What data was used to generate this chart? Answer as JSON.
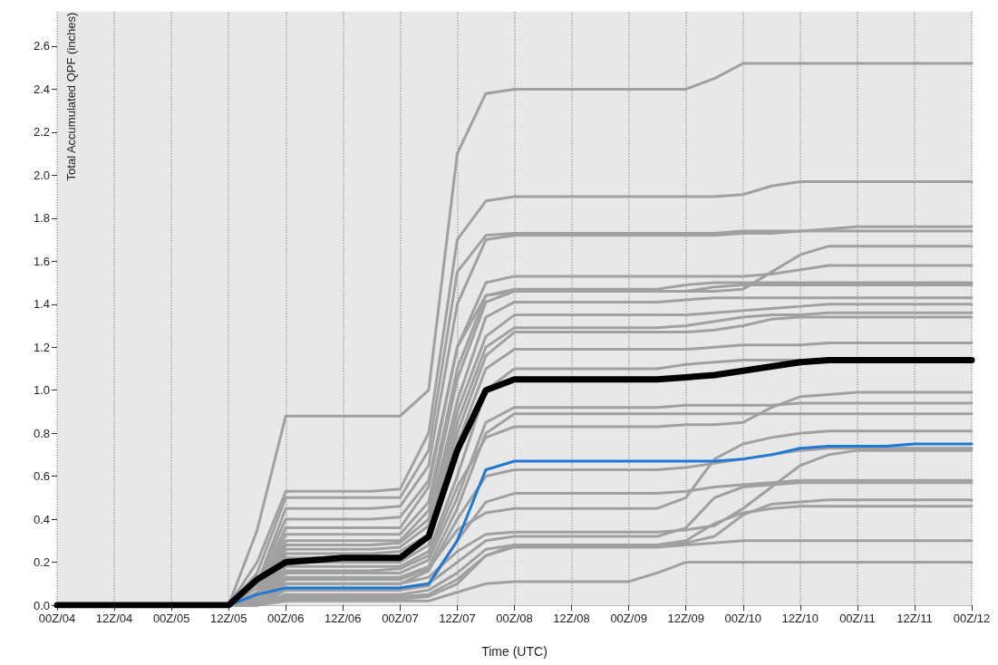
{
  "chart_data": {
    "type": "line",
    "xlabel": "Time (UTC)",
    "ylabel": "Total Accumulated QPF (inches)",
    "categories": [
      "00Z/04",
      null,
      "12Z/04",
      null,
      "00Z/05",
      null,
      "12Z/05",
      null,
      "00Z/06",
      null,
      "12Z/06",
      null,
      "00Z/07",
      null,
      "12Z/07",
      null,
      "00Z/08",
      null,
      "12Z/08",
      null,
      "00Z/09",
      null,
      "12Z/09",
      null,
      "00Z/10",
      null,
      "12Z/10",
      null,
      "00Z/11",
      null,
      "12Z/11",
      null,
      "00Z/12"
    ],
    "ylim": [
      0,
      2.76
    ],
    "yticks": [
      {
        "value": 0,
        "label": "0.0"
      },
      0.2,
      0.4,
      0.6,
      0.8,
      {
        "value": 1,
        "label": "1.0"
      },
      1.2,
      1.4,
      1.6,
      1.8,
      {
        "value": 2,
        "label": "2.0"
      },
      2.2,
      2.4,
      2.6
    ],
    "grid": "x",
    "marker": "none",
    "line_style": "solid",
    "series": [
      {
        "color": "#a0a0a0",
        "values": [
          0,
          0,
          0,
          0,
          0,
          0,
          0,
          0.35,
          0.88,
          0.88,
          0.88,
          0.88,
          0.88,
          1.0,
          2.1,
          2.38,
          2.4,
          2.4,
          2.4,
          2.4,
          2.4,
          2.4,
          2.4,
          2.45,
          2.52,
          2.52,
          2.52,
          2.52,
          2.52,
          2.52,
          2.52,
          2.52,
          2.52
        ]
      },
      {
        "color": "#a0a0a0",
        "values": [
          0,
          0,
          0,
          0,
          0,
          0,
          0,
          0.2,
          0.53,
          0.53,
          0.53,
          0.53,
          0.54,
          0.8,
          1.7,
          1.88,
          1.9,
          1.9,
          1.9,
          1.9,
          1.9,
          1.9,
          1.9,
          1.9,
          1.91,
          1.95,
          1.97,
          1.97,
          1.97,
          1.97,
          1.97,
          1.97,
          1.97
        ]
      },
      {
        "color": "#a0a0a0",
        "values": [
          0,
          0,
          0,
          0,
          0,
          0,
          0,
          0.15,
          0.5,
          0.5,
          0.5,
          0.5,
          0.5,
          0.72,
          1.55,
          1.72,
          1.73,
          1.73,
          1.73,
          1.73,
          1.73,
          1.73,
          1.73,
          1.73,
          1.74,
          1.74,
          1.74,
          1.75,
          1.76,
          1.76,
          1.76,
          1.76,
          1.76
        ]
      },
      {
        "color": "#a0a0a0",
        "values": [
          0,
          0,
          0,
          0,
          0,
          0,
          0,
          0.1,
          0.45,
          0.45,
          0.45,
          0.45,
          0.46,
          0.65,
          1.4,
          1.7,
          1.72,
          1.72,
          1.72,
          1.72,
          1.72,
          1.72,
          1.72,
          1.72,
          1.73,
          1.73,
          1.74,
          1.74,
          1.74,
          1.74,
          1.74,
          1.74,
          1.74
        ]
      },
      {
        "color": "#a0a0a0",
        "values": [
          0,
          0,
          0,
          0,
          0,
          0,
          0,
          0.1,
          0.4,
          0.4,
          0.4,
          0.4,
          0.41,
          0.58,
          1.2,
          1.44,
          1.46,
          1.46,
          1.46,
          1.46,
          1.46,
          1.46,
          1.46,
          1.46,
          1.47,
          1.55,
          1.63,
          1.67,
          1.67,
          1.67,
          1.67,
          1.67,
          1.67
        ]
      },
      {
        "color": "#a0a0a0",
        "values": [
          0,
          0,
          0,
          0,
          0,
          0,
          0,
          0.08,
          0.36,
          0.36,
          0.36,
          0.36,
          0.36,
          0.55,
          1.2,
          1.5,
          1.53,
          1.53,
          1.53,
          1.53,
          1.53,
          1.53,
          1.53,
          1.53,
          1.53,
          1.54,
          1.56,
          1.58,
          1.58,
          1.58,
          1.58,
          1.58,
          1.58
        ]
      },
      {
        "color": "#a0a0a0",
        "values": [
          0,
          0,
          0,
          0,
          0,
          0,
          0,
          0.06,
          0.33,
          0.33,
          0.33,
          0.33,
          0.33,
          0.48,
          1.1,
          1.44,
          1.47,
          1.47,
          1.47,
          1.47,
          1.47,
          1.47,
          1.49,
          1.5,
          1.5,
          1.5,
          1.5,
          1.5,
          1.5,
          1.5,
          1.5,
          1.5,
          1.5
        ]
      },
      {
        "color": "#a0a0a0",
        "values": [
          0,
          0,
          0,
          0,
          0,
          0,
          0,
          0.05,
          0.3,
          0.3,
          0.3,
          0.3,
          0.3,
          0.44,
          1.05,
          1.41,
          1.46,
          1.46,
          1.46,
          1.46,
          1.46,
          1.46,
          1.46,
          1.48,
          1.49,
          1.49,
          1.49,
          1.49,
          1.49,
          1.49,
          1.49,
          1.49,
          1.49
        ]
      },
      {
        "color": "#a0a0a0",
        "values": [
          0,
          0,
          0,
          0,
          0,
          0,
          0,
          0.04,
          0.28,
          0.28,
          0.28,
          0.28,
          0.29,
          0.4,
          0.95,
          1.34,
          1.41,
          1.41,
          1.41,
          1.41,
          1.41,
          1.41,
          1.42,
          1.43,
          1.43,
          1.43,
          1.43,
          1.43,
          1.43,
          1.43,
          1.43,
          1.43,
          1.43
        ]
      },
      {
        "color": "#a0a0a0",
        "values": [
          0,
          0,
          0,
          0,
          0,
          0,
          0,
          0.03,
          0.26,
          0.26,
          0.26,
          0.26,
          0.27,
          0.37,
          0.9,
          1.25,
          1.35,
          1.35,
          1.35,
          1.35,
          1.35,
          1.35,
          1.35,
          1.36,
          1.37,
          1.38,
          1.39,
          1.4,
          1.4,
          1.4,
          1.4,
          1.4,
          1.4
        ]
      },
      {
        "color": "#a0a0a0",
        "values": [
          0,
          0,
          0,
          0,
          0,
          0,
          0,
          0.03,
          0.24,
          0.24,
          0.24,
          0.24,
          0.25,
          0.33,
          0.85,
          1.2,
          1.29,
          1.29,
          1.29,
          1.29,
          1.29,
          1.29,
          1.3,
          1.32,
          1.34,
          1.35,
          1.35,
          1.36,
          1.36,
          1.36,
          1.36,
          1.36,
          1.36
        ]
      },
      {
        "color": "#a0a0a0",
        "values": [
          0,
          0,
          0,
          0,
          0,
          0,
          0,
          0.02,
          0.22,
          0.22,
          0.22,
          0.22,
          0.23,
          0.31,
          0.8,
          1.16,
          1.27,
          1.27,
          1.27,
          1.27,
          1.27,
          1.27,
          1.27,
          1.28,
          1.3,
          1.33,
          1.34,
          1.34,
          1.34,
          1.34,
          1.34,
          1.34,
          1.34
        ]
      },
      {
        "color": "#a0a0a0",
        "values": [
          0,
          0,
          0,
          0,
          0,
          0,
          0,
          0.02,
          0.2,
          0.2,
          0.2,
          0.2,
          0.2,
          0.28,
          0.75,
          1.1,
          1.19,
          1.19,
          1.19,
          1.19,
          1.19,
          1.19,
          1.19,
          1.2,
          1.21,
          1.21,
          1.21,
          1.22,
          1.22,
          1.22,
          1.22,
          1.22,
          1.22
        ]
      },
      {
        "color": "#a0a0a0",
        "values": [
          0,
          0,
          0,
          0,
          0,
          0,
          0,
          0.02,
          0.18,
          0.18,
          0.18,
          0.18,
          0.18,
          0.25,
          0.6,
          1.0,
          1.1,
          1.1,
          1.1,
          1.1,
          1.1,
          1.1,
          1.12,
          1.13,
          1.14,
          1.14,
          1.14,
          1.14,
          null,
          null,
          null,
          null,
          null
        ]
      },
      {
        "color": "#a0a0a0",
        "values": [
          0,
          0,
          0,
          0,
          0,
          0,
          0,
          0.01,
          0.16,
          0.16,
          0.16,
          0.16,
          0.17,
          0.23,
          0.55,
          0.78,
          0.83,
          0.83,
          0.83,
          0.83,
          0.83,
          0.83,
          0.84,
          0.84,
          0.85,
          0.92,
          0.97,
          0.98,
          0.99,
          0.99,
          0.99,
          0.99,
          0.99
        ]
      },
      {
        "color": "#a0a0a0",
        "values": [
          0,
          0,
          0,
          0,
          0,
          0,
          0,
          0.01,
          0.15,
          0.15,
          0.15,
          0.15,
          0.15,
          0.21,
          0.5,
          0.85,
          0.92,
          0.92,
          0.92,
          0.92,
          0.92,
          0.92,
          0.93,
          0.93,
          0.93,
          0.93,
          0.94,
          0.94,
          0.94,
          0.94,
          0.94,
          0.94,
          0.94
        ]
      },
      {
        "color": "#a0a0a0",
        "values": [
          0,
          0,
          0,
          0,
          0,
          0,
          0,
          0.01,
          0.13,
          0.13,
          0.13,
          0.13,
          0.13,
          0.18,
          0.45,
          0.8,
          0.89,
          0.89,
          0.89,
          0.89,
          0.89,
          0.89,
          0.89,
          0.89,
          0.89,
          0.89,
          0.89,
          0.89,
          0.89,
          0.89,
          0.89,
          0.89,
          0.89
        ]
      },
      {
        "color": "#a0a0a0",
        "values": [
          0,
          0,
          0,
          0,
          0,
          0,
          0,
          0,
          0.12,
          0.12,
          0.12,
          0.12,
          0.12,
          0.17,
          0.35,
          0.43,
          0.45,
          0.45,
          0.45,
          0.45,
          0.45,
          0.45,
          0.5,
          0.68,
          0.75,
          0.78,
          0.8,
          0.81,
          0.81,
          0.81,
          0.81,
          0.81,
          0.81
        ]
      },
      {
        "color": "#a0a0a0",
        "values": [
          0,
          0,
          0,
          0,
          0,
          0,
          0,
          0.01,
          0.1,
          0.1,
          0.1,
          0.1,
          0.1,
          0.16,
          0.4,
          0.6,
          0.63,
          0.63,
          0.63,
          0.63,
          0.63,
          0.63,
          0.64,
          0.66,
          0.68,
          0.7,
          0.72,
          0.73,
          0.73,
          0.73,
          0.73,
          0.73,
          0.73
        ]
      },
      {
        "color": "#a0a0a0",
        "values": [
          0,
          0,
          0,
          0,
          0,
          0,
          0,
          0,
          0.1,
          0.1,
          0.1,
          0.1,
          0.1,
          0.13,
          0.25,
          0.33,
          0.34,
          0.34,
          0.34,
          0.34,
          0.34,
          0.34,
          0.35,
          0.37,
          0.45,
          0.55,
          0.65,
          0.7,
          0.72,
          0.72,
          0.72,
          0.72,
          0.72
        ]
      },
      {
        "color": "#a0a0a0",
        "values": [
          0,
          0,
          0,
          0,
          0,
          0,
          0,
          0,
          0.08,
          0.08,
          0.08,
          0.08,
          0.08,
          0.1,
          0.2,
          0.3,
          0.32,
          0.32,
          0.32,
          0.32,
          0.32,
          0.32,
          0.36,
          0.5,
          0.55,
          0.56,
          0.57,
          0.57,
          0.57,
          0.57,
          0.57,
          0.57,
          0.57
        ]
      },
      {
        "color": "#a0a0a0",
        "values": [
          0,
          0,
          0,
          0,
          0,
          0,
          0,
          0,
          0.07,
          0.07,
          0.07,
          0.07,
          0.07,
          0.09,
          0.3,
          0.48,
          0.52,
          0.52,
          0.52,
          0.52,
          0.52,
          0.52,
          0.53,
          0.55,
          0.56,
          0.57,
          0.58,
          0.58,
          0.58,
          0.58,
          0.58,
          0.58,
          0.58
        ]
      },
      {
        "color": "#a0a0a0",
        "values": [
          0,
          0,
          0,
          0,
          0,
          0,
          0,
          0,
          0.05,
          0.05,
          0.05,
          0.05,
          0.05,
          0.07,
          0.15,
          0.26,
          0.28,
          0.28,
          0.28,
          0.28,
          0.28,
          0.28,
          0.29,
          0.32,
          0.42,
          0.47,
          0.48,
          0.49,
          0.49,
          0.49,
          0.49,
          0.49,
          0.49
        ]
      },
      {
        "color": "#a0a0a0",
        "values": [
          0,
          0,
          0,
          0,
          0,
          0,
          0,
          0,
          0.04,
          0.04,
          0.04,
          0.04,
          0.04,
          0.05,
          0.12,
          0.23,
          0.28,
          0.28,
          0.28,
          0.28,
          0.28,
          0.28,
          0.3,
          0.38,
          0.43,
          0.45,
          0.46,
          0.46,
          0.46,
          0.46,
          0.46,
          0.46,
          0.46
        ]
      },
      {
        "color": "#a0a0a0",
        "values": [
          0,
          0,
          0,
          0,
          0,
          0,
          0,
          0,
          0.03,
          0.03,
          0.03,
          0.03,
          0.03,
          0.04,
          0.1,
          0.23,
          0.27,
          0.27,
          0.27,
          0.27,
          0.27,
          0.27,
          0.28,
          0.29,
          0.3,
          0.3,
          0.3,
          0.3,
          0.3,
          0.3,
          0.3,
          0.3,
          0.3
        ]
      },
      {
        "color": "#a0a0a0",
        "values": [
          0,
          0,
          0,
          0,
          0,
          0,
          0,
          0,
          0.02,
          0.02,
          0.02,
          0.02,
          0.02,
          0.02,
          0.06,
          0.1,
          0.11,
          0.11,
          0.11,
          0.11,
          0.11,
          0.15,
          0.2,
          0.2,
          0.2,
          0.2,
          0.2,
          0.2,
          0.2,
          0.2,
          0.2,
          0.2,
          0.2
        ]
      },
      {
        "color": "#1f78d1",
        "values": [
          null,
          null,
          null,
          null,
          null,
          0,
          0,
          0.05,
          0.08,
          0.08,
          0.08,
          0.08,
          0.08,
          0.1,
          0.3,
          0.63,
          0.67,
          0.67,
          0.67,
          0.67,
          0.67,
          0.67,
          0.67,
          0.67,
          0.68,
          0.7,
          0.73,
          0.74,
          0.74,
          0.74,
          0.75,
          0.75,
          0.75
        ]
      },
      {
        "color": "#000000",
        "values": [
          0,
          0,
          0,
          0,
          0,
          0,
          0,
          0.12,
          0.2,
          0.21,
          0.22,
          0.22,
          0.22,
          0.32,
          0.72,
          1.0,
          1.05,
          1.05,
          1.05,
          1.05,
          1.05,
          1.05,
          1.06,
          1.07,
          1.09,
          1.11,
          1.13,
          1.14,
          1.14,
          1.14,
          1.14,
          1.14,
          1.14
        ]
      }
    ]
  }
}
